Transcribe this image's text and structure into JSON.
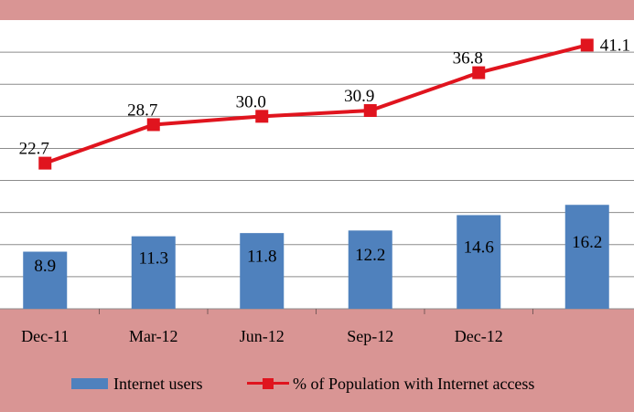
{
  "chart_data": {
    "type": "bar+line",
    "categories": [
      "Dec-11",
      "Mar-12",
      "Jun-12",
      "Sep-12",
      "Dec-12",
      ""
    ],
    "series": [
      {
        "name": "Internet users",
        "type": "bar",
        "color": "#4f81bd",
        "values": [
          8.9,
          11.3,
          11.8,
          12.2,
          14.6,
          16.2
        ],
        "labels": [
          "8.9",
          "11.3",
          "11.8",
          "12.2",
          "14.6",
          "16.2"
        ]
      },
      {
        "name": "% of Population with Internet access",
        "type": "line",
        "color": "#e0141e",
        "marker": "square",
        "values": [
          22.7,
          28.7,
          30.0,
          30.9,
          36.8,
          41.1
        ],
        "labels": [
          "22.7",
          "28.7",
          "30.0",
          "30.9",
          "36.8",
          "41.1"
        ]
      }
    ],
    "ylim": [
      0,
      45
    ],
    "grid": true,
    "legend_position": "bottom",
    "colors": {
      "plot_bg": "#ffffff",
      "outer_bg": "#d99594",
      "grid": "#8c8c8c"
    }
  }
}
